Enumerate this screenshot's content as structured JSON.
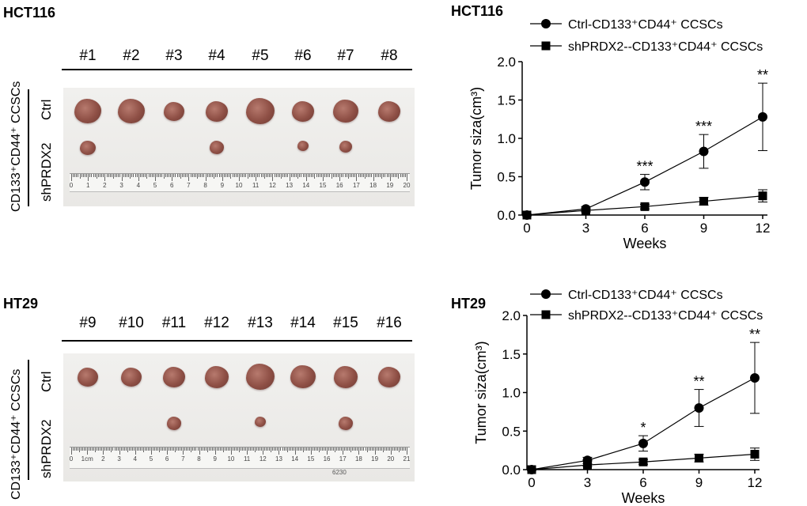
{
  "panels": [
    {
      "cell_line": "HCT116",
      "sample_numbers": [
        "#1",
        "#2",
        "#3",
        "#4",
        "#5",
        "#6",
        "#7",
        "#8"
      ],
      "group_label": "CD133⁺CD44⁺ CCSCs",
      "row_labels": [
        "Ctrl",
        "shPRDX2"
      ],
      "ruler_numbers": [
        "0",
        "1",
        "2",
        "3",
        "4",
        "5",
        "6",
        "7",
        "8",
        "9",
        "10",
        "11",
        "12",
        "13",
        "14",
        "15",
        "16",
        "17",
        "18",
        "19",
        "20"
      ],
      "tumors_present": {
        "ctrl": [
          1,
          1,
          1,
          1,
          1,
          1,
          1,
          1
        ],
        "shprdx2": [
          1,
          0,
          0,
          1,
          0,
          1,
          1,
          0
        ]
      }
    },
    {
      "cell_line": "HT29",
      "sample_numbers": [
        "#9",
        "#10",
        "#11",
        "#12",
        "#13",
        "#14",
        "#15",
        "#16"
      ],
      "group_label": "CD133⁺CD44⁺ CCSCs",
      "row_labels": [
        "Ctrl",
        "shPRDX2"
      ],
      "ruler_numbers": [
        "0",
        "1cm",
        "2",
        "3",
        "4",
        "5",
        "6",
        "7",
        "8",
        "9",
        "10",
        "11",
        "12",
        "13",
        "14",
        "15",
        "16",
        "17",
        "18",
        "19",
        "20",
        "21"
      ],
      "ruler_sticker": "6230",
      "tumors_present": {
        "ctrl": [
          1,
          1,
          1,
          1,
          1,
          1,
          1,
          1
        ],
        "shprdx2": [
          0,
          0,
          1,
          0,
          1,
          0,
          1,
          0
        ]
      }
    }
  ],
  "chart_data": [
    {
      "type": "line",
      "title": "HCT116",
      "xlabel": "Weeks",
      "ylabel": "Tumor siza(cm³)",
      "x": [
        0,
        3,
        6,
        9,
        12
      ],
      "xticks": [
        "0",
        "3",
        "6",
        "9",
        "12"
      ],
      "yticks": [
        "0.0",
        "0.5",
        "1.0",
        "1.5",
        "2.0"
      ],
      "ylim": [
        0,
        2.0
      ],
      "series": [
        {
          "name": "Ctrl-CD133⁺CD44⁺ CCSCs",
          "marker": "circle",
          "values": [
            0,
            0.08,
            0.43,
            0.83,
            1.28
          ],
          "errors": [
            0,
            0.03,
            0.1,
            0.22,
            0.44
          ]
        },
        {
          "name": "shPRDX2--CD133⁺CD44⁺ CCSCs",
          "marker": "square",
          "values": [
            0,
            0.06,
            0.11,
            0.18,
            0.25
          ],
          "errors": [
            0,
            0.02,
            0.03,
            0.05,
            0.08
          ]
        }
      ],
      "significance": [
        "",
        "",
        "***",
        "***",
        "**"
      ],
      "legend": "top-right"
    },
    {
      "type": "line",
      "title": "HT29",
      "xlabel": "Weeks",
      "ylabel": "Tumor siza(cm³)",
      "x": [
        0,
        3,
        6,
        9,
        12
      ],
      "xticks": [
        "0",
        "3",
        "6",
        "9",
        "12"
      ],
      "yticks": [
        "0.0",
        "0.5",
        "1.0",
        "1.5",
        "2.0"
      ],
      "ylim": [
        0,
        2.0
      ],
      "series": [
        {
          "name": "Ctrl-CD133⁺CD44⁺ CCSCs",
          "marker": "circle",
          "values": [
            0,
            0.12,
            0.34,
            0.8,
            1.19
          ],
          "errors": [
            0,
            0.04,
            0.1,
            0.24,
            0.46
          ]
        },
        {
          "name": "shPRDX2--CD133⁺CD44⁺ CCSCs",
          "marker": "square",
          "values": [
            0,
            0.06,
            0.1,
            0.15,
            0.2
          ],
          "errors": [
            0,
            0.02,
            0.03,
            0.05,
            0.08
          ]
        }
      ],
      "significance": [
        "",
        "",
        "*",
        "**",
        "**"
      ],
      "legend": "top-right"
    }
  ]
}
